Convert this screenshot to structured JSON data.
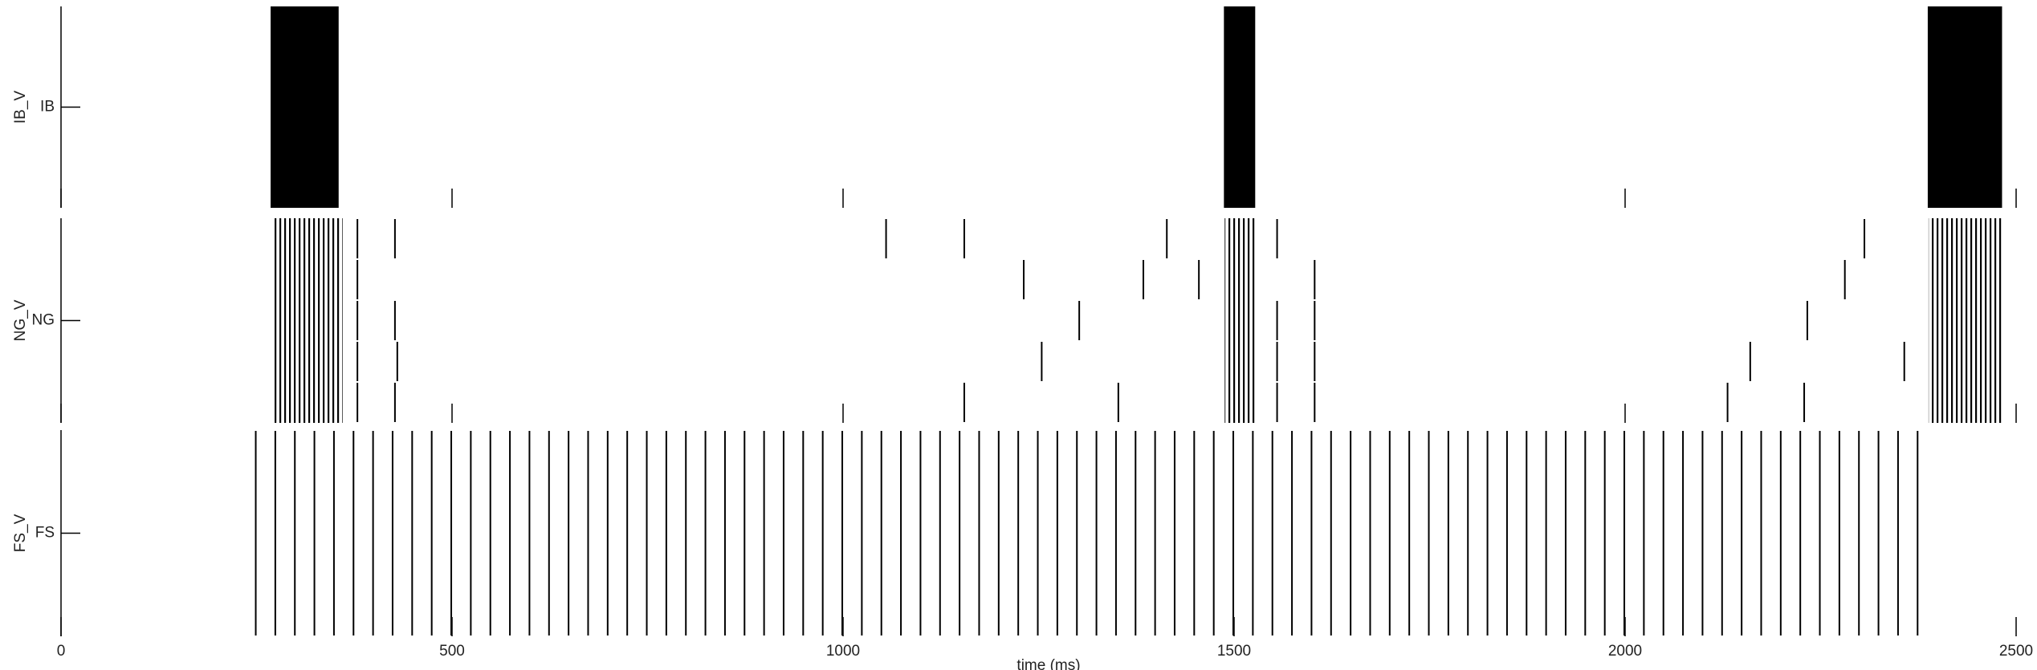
{
  "chart_data": {
    "type": "raster",
    "xlabel": "time (ms)",
    "xlim": [
      0,
      2500
    ],
    "xticks": [
      0,
      500,
      1000,
      1500,
      2000,
      2500
    ],
    "color": "#000000",
    "panels": [
      {
        "ylabel": "IB_V",
        "category": "IB",
        "burst_fill": "solid",
        "bursts": [
          [
            268,
            355
          ],
          [
            1487,
            1527
          ],
          [
            2387,
            2482
          ]
        ],
        "spikes": []
      },
      {
        "ylabel": "NG_V",
        "category": "NG",
        "burst_fill": "striped",
        "bursts": [
          [
            270,
            360
          ],
          [
            1488,
            1528
          ],
          [
            2388,
            2482
          ]
        ],
        "spikes": [
          [
            379,
            427,
            1055,
            1155,
            1414,
            1555,
            2306
          ],
          [
            379,
            1231,
            1384,
            1455,
            1603,
            2281
          ],
          [
            379,
            427,
            1302,
            1555,
            1603,
            2233
          ],
          [
            379,
            430,
            1254,
            1555,
            1603,
            2160,
            2357
          ],
          [
            379,
            427,
            1155,
            1352,
            1555,
            1603,
            2131,
            2229
          ]
        ]
      },
      {
        "ylabel": "FS_V",
        "category": "FS",
        "burst_fill": "solid",
        "bursts": [],
        "spikes": [
          [
            249,
            274,
            299,
            324,
            349,
            374,
            399,
            424,
            449,
            474,
            499,
            524,
            549,
            574,
            599,
            624,
            649,
            674,
            699,
            724,
            749,
            774,
            799,
            824,
            849,
            874,
            899,
            924,
            949,
            974,
            999,
            1024,
            1049,
            1074,
            1099,
            1124,
            1149,
            1174,
            1199,
            1224,
            1249,
            1274,
            1299,
            1324,
            1349,
            1374,
            1399,
            1424,
            1449,
            1474,
            1499,
            1524,
            1549,
            1574,
            1599,
            1624,
            1649,
            1674,
            1699,
            1724,
            1749,
            1774,
            1799,
            1824,
            1849,
            1874,
            1899,
            1924,
            1949,
            1974,
            1999,
            2024,
            2049,
            2074,
            2099,
            2124,
            2149,
            2174,
            2199,
            2224,
            2249,
            2274,
            2299,
            2324,
            2349,
            2374
          ]
        ]
      }
    ]
  }
}
